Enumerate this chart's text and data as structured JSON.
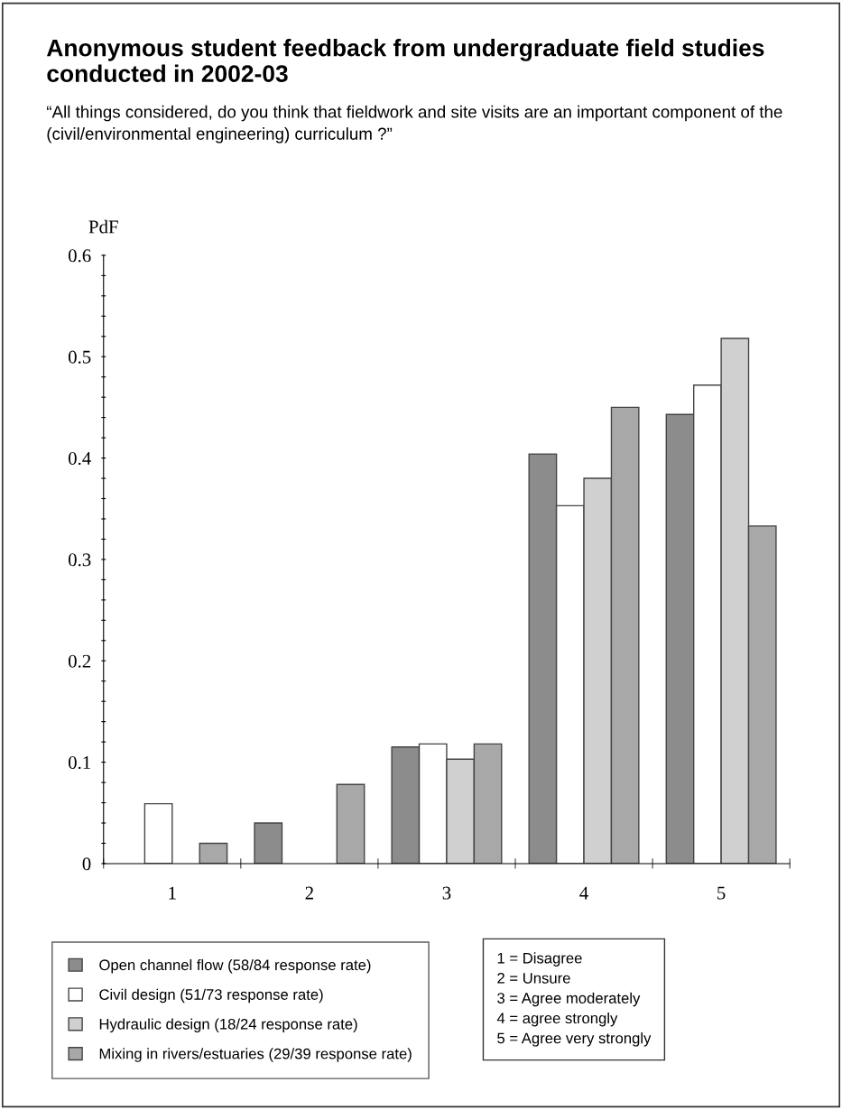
{
  "chart_data": {
    "type": "bar",
    "title": "Anonymous student feedback from undergraduate field studies conducted in 2002-03",
    "subtitle": "“All things considered, do you think that fieldwork and site visits are an important component of the (civil/environmental engineering) curriculum ?”",
    "ylabel": "PdF",
    "categories": [
      "1",
      "2",
      "3",
      "4",
      "5"
    ],
    "series": [
      {
        "name": "Open channel flow (58/84 response rate)",
        "color": "#8c8c8c",
        "values": [
          0,
          0.04,
          0.115,
          0.404,
          0.443
        ]
      },
      {
        "name": "Civil design (51/73 response rate)",
        "color": "#ffffff",
        "values": [
          0.059,
          0,
          0.118,
          0.353,
          0.472
        ]
      },
      {
        "name": "Hydraulic design (18/24 response rate)",
        "color": "#d0d0d0",
        "values": [
          0,
          0,
          0.103,
          0.38,
          0.518
        ]
      },
      {
        "name": "Mixing in rivers/estuaries (29/39 response rate)",
        "color": "#a8a8a8",
        "values": [
          0.02,
          0.078,
          0.118,
          0.45,
          0.333
        ]
      }
    ],
    "ylim": [
      0,
      0.6
    ],
    "yticks": [
      0,
      {
        "value": 0.02,
        "label": null
      },
      {
        "value": 0.04,
        "label": null
      },
      {
        "value": 0.06,
        "label": null
      },
      {
        "value": 0.08,
        "label": null
      },
      0.1,
      {
        "value": 0.12,
        "label": null
      },
      {
        "value": 0.14,
        "label": null
      },
      {
        "value": 0.16,
        "label": null
      },
      {
        "value": 0.18,
        "label": null
      },
      0.2,
      {
        "value": 0.22,
        "label": null
      },
      {
        "value": 0.24,
        "label": null
      },
      {
        "value": 0.26,
        "label": null
      },
      {
        "value": 0.28,
        "label": null
      },
      0.3,
      {
        "value": 0.32,
        "label": null
      },
      {
        "value": 0.34,
        "label": null
      },
      {
        "value": 0.36,
        "label": null
      },
      {
        "value": 0.38,
        "label": null
      },
      0.4,
      {
        "value": 0.42,
        "label": null
      },
      {
        "value": 0.44,
        "label": null
      },
      {
        "value": 0.46,
        "label": null
      },
      {
        "value": 0.48,
        "label": null
      },
      0.5,
      {
        "value": 0.52,
        "label": null
      },
      {
        "value": 0.54,
        "label": null
      },
      {
        "value": 0.56,
        "label": null
      },
      {
        "value": 0.58,
        "label": null
      },
      0.6
    ],
    "grid": false,
    "legend": "bottom left",
    "annotations": [
      "1 = Disagree",
      "2 = Unsure",
      "3 = Agree moderately",
      "4 = agree strongly",
      "5 = Agree very strongly"
    ]
  }
}
